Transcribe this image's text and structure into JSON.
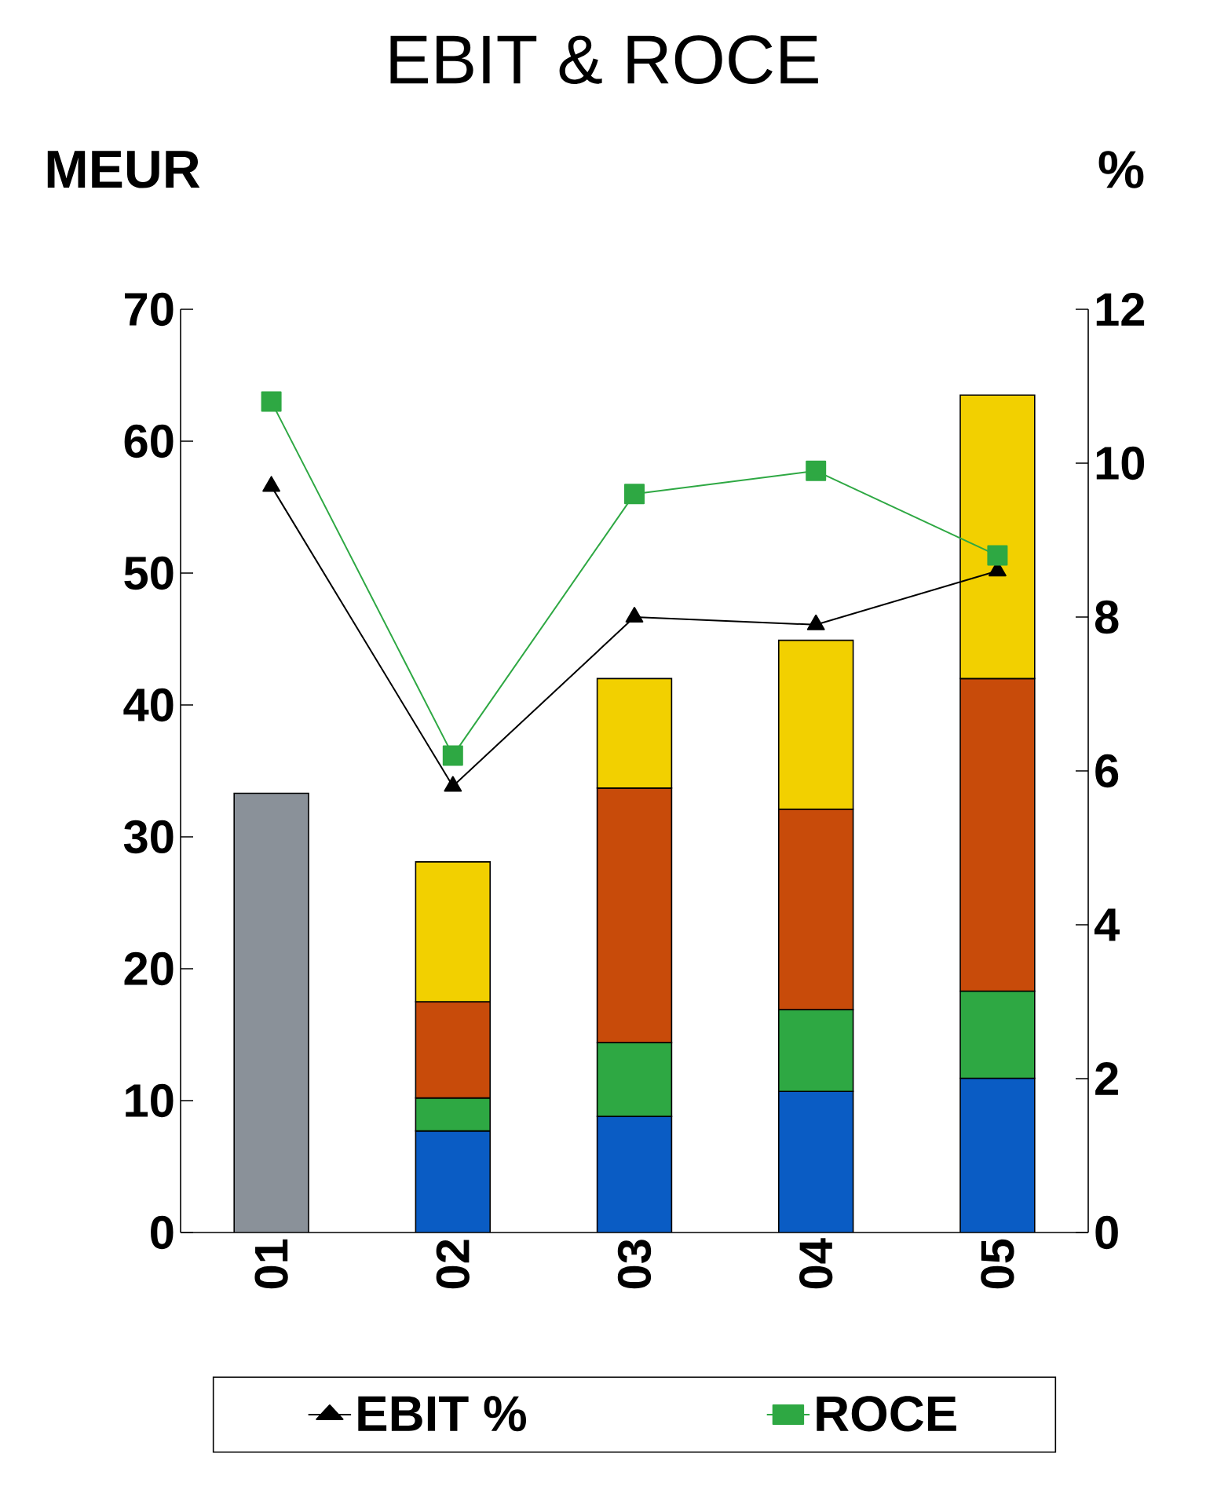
{
  "chart_data": {
    "type": "bar",
    "title": "EBIT & ROCE",
    "ylabel": "MEUR",
    "y2label": "%",
    "categories": [
      "01",
      "02",
      "03",
      "04",
      "05"
    ],
    "stacked": true,
    "series": [
      {
        "color": "#8a9199",
        "values": [
          33.3,
          null,
          null,
          null,
          null
        ]
      },
      {
        "color": "#0a5cc4",
        "values": [
          null,
          7.7,
          8.8,
          10.7,
          11.7
        ]
      },
      {
        "color": "#2ea843",
        "values": [
          null,
          2.5,
          5.6,
          6.2,
          6.6
        ]
      },
      {
        "color": "#c84b0a",
        "values": [
          null,
          7.3,
          19.3,
          15.2,
          23.7
        ]
      },
      {
        "color": "#f2d000",
        "values": [
          null,
          10.6,
          8.3,
          12.8,
          21.5
        ]
      },
      {
        "type": "line",
        "axis": "y2",
        "name": "EBIT %",
        "color": "#000000",
        "marker": "triangle",
        "values": [
          9.7,
          5.8,
          8.0,
          7.9,
          8.6
        ]
      },
      {
        "type": "line",
        "axis": "y2",
        "name": "ROCE",
        "color": "#2ea843",
        "marker": "square",
        "values": [
          10.8,
          6.2,
          9.6,
          9.9,
          8.8
        ]
      }
    ],
    "ylim": [
      0,
      70
    ],
    "yticks": [
      0,
      10,
      20,
      30,
      40,
      50,
      60,
      70
    ],
    "y2lim": [
      0,
      12
    ],
    "y2ticks": [
      0,
      2,
      4,
      6,
      8,
      10,
      12
    ],
    "legend": "bottom"
  }
}
